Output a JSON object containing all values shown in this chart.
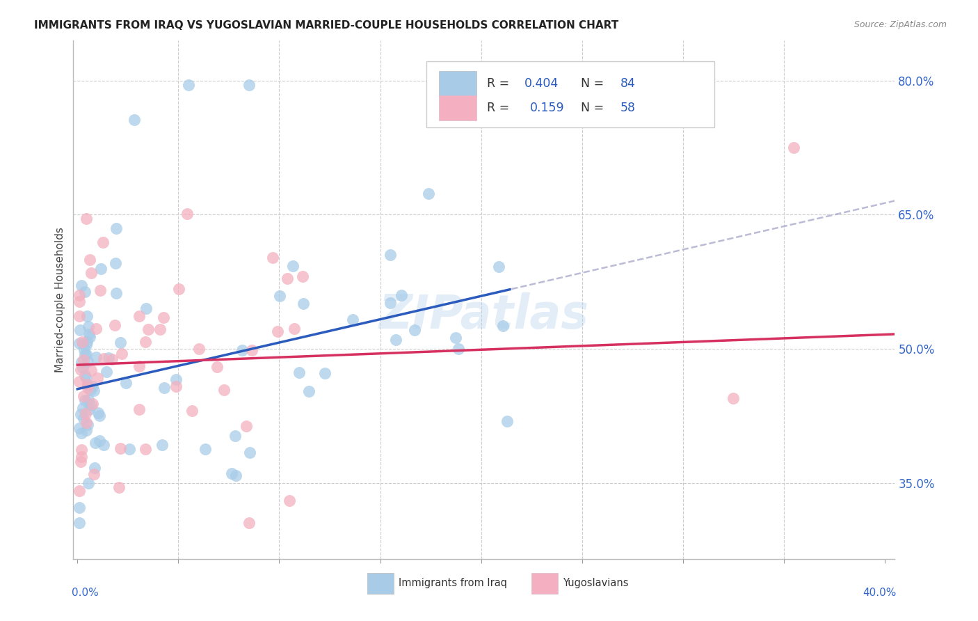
{
  "title": "IMMIGRANTS FROM IRAQ VS YUGOSLAVIAN MARRIED-COUPLE HOUSEHOLDS CORRELATION CHART",
  "source": "Source: ZipAtlas.com",
  "ylabel": "Married-couple Households",
  "xlim": [
    -0.002,
    0.405
  ],
  "ylim": [
    0.265,
    0.845
  ],
  "yticks_right": [
    0.35,
    0.5,
    0.65,
    0.8
  ],
  "ytick_right_labels": [
    "35.0%",
    "50.0%",
    "65.0%",
    "80.0%"
  ],
  "xtick_positions": [
    0.0,
    0.05,
    0.1,
    0.15,
    0.2,
    0.25,
    0.3,
    0.35,
    0.4
  ],
  "blue_scatter_color": "#A8CCE8",
  "pink_scatter_color": "#F4B0C0",
  "blue_line_color": "#2B5BBD",
  "pink_line_color": "#D63060",
  "gray_dash_color": "#AAAACC",
  "blue_reg_slope": 0.52,
  "blue_reg_intercept": 0.455,
  "blue_line_xmax": 0.215,
  "pink_reg_slope": 0.085,
  "pink_reg_intercept": 0.482,
  "diag_xstart": 0.02,
  "diag_xend": 0.405,
  "diag_slope": 0.95,
  "diag_intercept": 0.58,
  "watermark": "ZIPatlas",
  "R1": "0.404",
  "N1": "84",
  "R2": "0.159",
  "N2": "58",
  "legend_label_color": "#333333",
  "legend_value_color": "#2B5BBD",
  "right_axis_color": "#3366CC"
}
